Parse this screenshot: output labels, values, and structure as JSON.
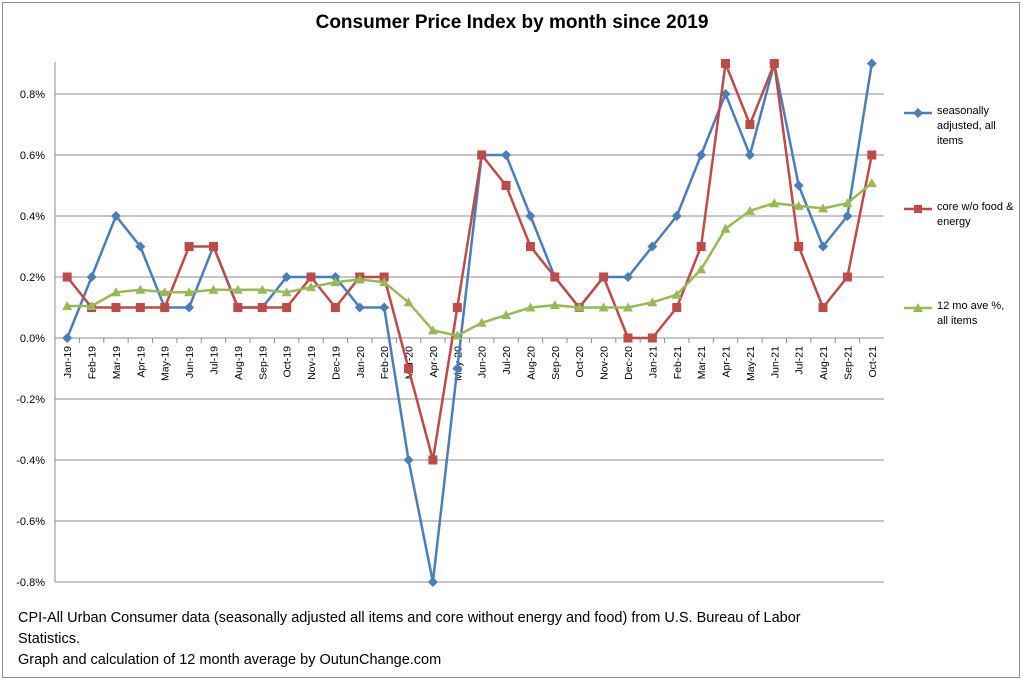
{
  "chart_data": {
    "type": "line",
    "title": "Consumer Price Index by month since 2019",
    "x": [
      "Jan-19",
      "Feb-19",
      "Mar-19",
      "Apr-19",
      "May-19",
      "Jun-19",
      "Jul-19",
      "Aug-19",
      "Sep-19",
      "Oct-19",
      "Nov-19",
      "Dec-19",
      "Jan-20",
      "Feb-20",
      "Mar-20",
      "Apr-20",
      "May-20",
      "Jun-20",
      "Jul-20",
      "Aug-20",
      "Sep-20",
      "Oct-20",
      "Nov-20",
      "Dec-20",
      "Jan-21",
      "Feb-21",
      "Mar-21",
      "Apr-21",
      "May-21",
      "Jun-21",
      "Jul-21",
      "Aug-21",
      "Sep-21",
      "Oct-21"
    ],
    "yticks": [
      "0.8%",
      "0.6%",
      "0.4%",
      "0.2%",
      "0.0%",
      "-0.2%",
      "-0.4%",
      "-0.6%",
      "-0.8%"
    ],
    "ylim": [
      -0.8,
      0.9
    ],
    "grid": true,
    "legend_position": "right",
    "series": [
      {
        "name": "seasonally adjusted, all items",
        "color": "#4a7ebb",
        "marker": "diamond",
        "values": [
          0.0,
          0.2,
          0.4,
          0.3,
          0.1,
          0.1,
          0.3,
          0.1,
          0.1,
          0.2,
          0.2,
          0.2,
          0.1,
          0.1,
          -0.4,
          -0.8,
          -0.1,
          0.6,
          0.6,
          0.4,
          0.2,
          0.1,
          0.2,
          0.2,
          0.3,
          0.4,
          0.6,
          0.8,
          0.6,
          0.9,
          0.5,
          0.3,
          0.4,
          0.9
        ]
      },
      {
        "name": "core w/o food & energy",
        "color": "#be4b48",
        "marker": "square",
        "values": [
          0.2,
          0.1,
          0.1,
          0.1,
          0.1,
          0.3,
          0.3,
          0.1,
          0.1,
          0.1,
          0.2,
          0.1,
          0.2,
          0.2,
          -0.1,
          -0.4,
          0.1,
          0.6,
          0.5,
          0.3,
          0.2,
          0.1,
          0.2,
          0.0,
          0.0,
          0.1,
          0.3,
          0.9,
          0.7,
          0.9,
          0.3,
          0.1,
          0.2,
          0.6
        ]
      },
      {
        "name": "12 mo ave %, all items",
        "color": "#98b954",
        "marker": "triangle",
        "values": [
          0.105,
          0.105,
          0.15,
          0.158,
          0.15,
          0.15,
          0.158,
          0.158,
          0.158,
          0.15,
          0.167,
          0.183,
          0.192,
          0.183,
          0.117,
          0.025,
          0.008,
          0.05,
          0.075,
          0.1,
          0.108,
          0.1,
          0.1,
          0.1,
          0.117,
          0.142,
          0.225,
          0.358,
          0.417,
          0.442,
          0.433,
          0.425,
          0.442,
          0.508
        ]
      }
    ]
  },
  "caption": {
    "line1": "CPI-All Urban Consumer data (seasonally adjusted all items and core without energy and food) from U.S. Bureau of Labor",
    "line2": "Statistics.",
    "line3": "Graph and calculation of 12 month average by OutunChange.com"
  }
}
